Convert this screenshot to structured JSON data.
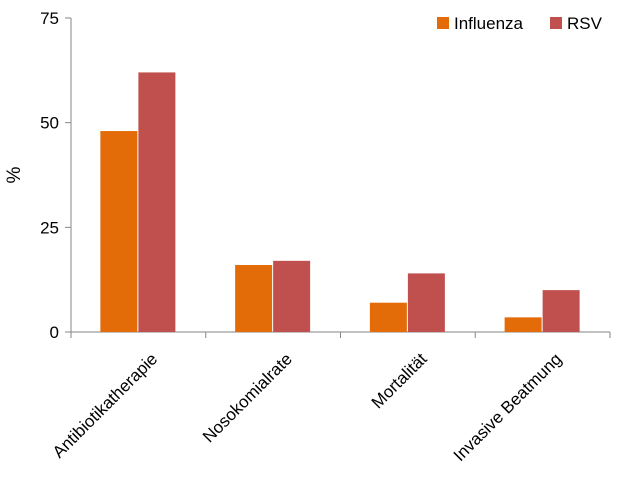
{
  "chart_data": {
    "type": "bar",
    "title": "",
    "xlabel": "",
    "ylabel": "%",
    "ylim": [
      0,
      75
    ],
    "yticks": [
      "0",
      "25",
      "50",
      "75"
    ],
    "ytick_values": [
      0,
      25,
      50,
      75
    ],
    "categories": [
      "Antibiotikatherapie",
      "Nosokomialrate",
      "Mortalität",
      "Invasive Beatmung"
    ],
    "series": [
      {
        "name": "Influenza",
        "color": "#E36C09",
        "values": [
          48,
          16,
          7,
          3.5
        ]
      },
      {
        "name": "RSV",
        "color": "#C0504D",
        "values": [
          62,
          17,
          14,
          10
        ]
      }
    ],
    "grid": false,
    "legend": "top-right"
  }
}
